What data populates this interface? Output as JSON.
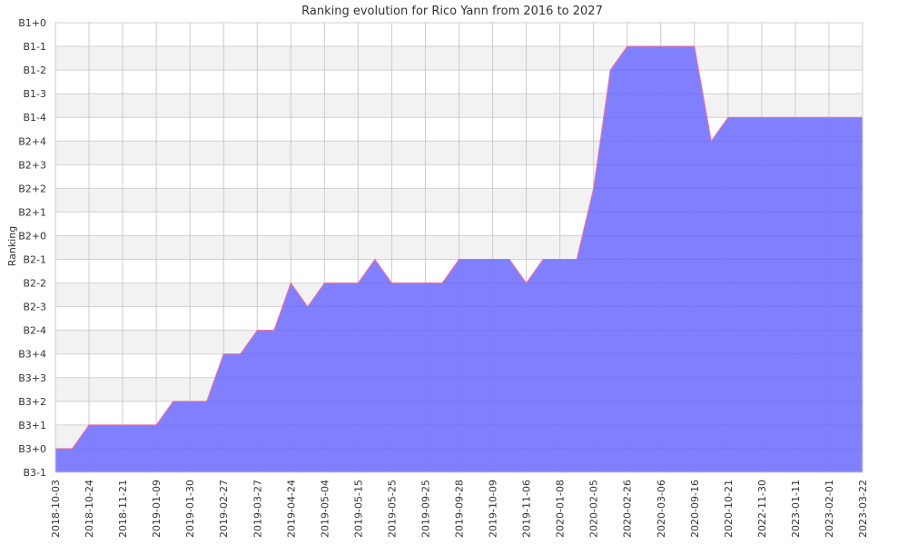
{
  "chart_data": {
    "type": "area",
    "title": "Ranking evolution for Rico Yann from 2016 to 2027",
    "xlabel": "",
    "ylabel": "Ranking",
    "grid": true,
    "legend": "none",
    "colors": {
      "fill": "#7b7bff",
      "line": "#ff6f9a",
      "band": "#f2f2f2",
      "grid": "#cccccc"
    },
    "y_levels": [
      "B3-1",
      "B3+0",
      "B3+1",
      "B3+2",
      "B3+3",
      "B3+4",
      "B2-4",
      "B2-3",
      "B2-2",
      "B2-1",
      "B2+0",
      "B2+1",
      "B2+2",
      "B2+3",
      "B2+4",
      "B1-4",
      "B1-3",
      "B1-2",
      "B1-1",
      "B1+0"
    ],
    "x_ticks": [
      "2018-10-03",
      "2018-10-24",
      "2018-11-21",
      "2019-01-09",
      "2019-01-30",
      "2019-02-27",
      "2019-03-27",
      "2019-04-24",
      "2019-05-04",
      "2019-05-15",
      "2019-05-25",
      "2019-09-25",
      "2019-09-28",
      "2019-10-09",
      "2019-11-06",
      "2020-01-08",
      "2020-02-05",
      "2020-02-26",
      "2020-03-06",
      "2020-09-16",
      "2020-10-21",
      "2022-11-30",
      "2023-01-11",
      "2023-02-01",
      "2023-03-22"
    ],
    "series": [
      {
        "values": [
          "B3+0",
          "B3+0",
          "B3+1",
          "B3+1",
          "B3+1",
          "B3+1",
          "B3+1",
          "B3+2",
          "B3+2",
          "B3+2",
          "B3+4",
          "B3+4",
          "B2-4",
          "B2-4",
          "B2-2",
          "B2-3",
          "B2-2",
          "B2-2",
          "B2-2",
          "B2-1",
          "B2-2",
          "B2-2",
          "B2-2",
          "B2-2",
          "B2-1",
          "B2-1",
          "B2-1",
          "B2-1",
          "B2-2",
          "B2-1",
          "B2-1",
          "B2-1",
          "B2+2",
          "B1-2",
          "B1-1",
          "B1-1",
          "B1-1",
          "B1-1",
          "B1-1",
          "B2+4",
          "B1-4",
          "B1-4",
          "B1-4",
          "B1-4",
          "B1-4",
          "B1-4",
          "B1-4",
          "B1-4",
          "B1-4"
        ]
      }
    ]
  }
}
